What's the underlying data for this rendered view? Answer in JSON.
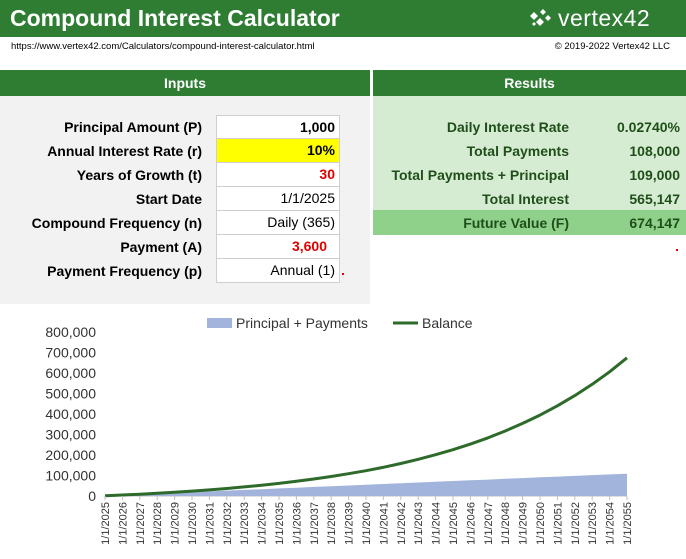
{
  "header": {
    "title": "Compound Interest Calculator",
    "brand": "vertex42",
    "url": "https://www.vertex42.com/Calculators/compound-interest-calculator.html",
    "copyright": "© 2019-2022 Vertex42 LLC"
  },
  "inputs": {
    "heading": "Inputs",
    "rows": [
      {
        "label": "Principal Amount (P)",
        "value": "1,000"
      },
      {
        "label": "Annual Interest Rate (r)",
        "value": "10%"
      },
      {
        "label": "Years of Growth (t)",
        "value": "30"
      },
      {
        "label": "Start Date",
        "value": "1/1/2025"
      },
      {
        "label": "Compound Frequency (n)",
        "value": "Daily (365)"
      },
      {
        "label": "Payment (A)",
        "value": "3,600"
      },
      {
        "label": "Payment Frequency (p)",
        "value": "Annual (1)"
      }
    ]
  },
  "results": {
    "heading": "Results",
    "rows": [
      {
        "label": "Daily Interest Rate",
        "value": "0.02740%"
      },
      {
        "label": "Total Payments",
        "value": "108,000"
      },
      {
        "label": "Total Payments + Principal",
        "value": "109,000"
      },
      {
        "label": "Total Interest",
        "value": "565,147"
      },
      {
        "label": "Future Value (F)",
        "value": "674,147"
      }
    ]
  },
  "colors": {
    "header_green": "#2e7d32",
    "results_bg": "#d6ecd2",
    "future_value_bg": "#8fd18b",
    "highlight_yellow": "#ffff00",
    "input_red": "#e00000",
    "area_fill": "#a3b4dc",
    "balance_line": "#2e6b2a"
  },
  "chart_data": {
    "type": "line",
    "legend_position": "top",
    "ylim": [
      0,
      800000
    ],
    "y_ticks": [
      "0",
      "100,000",
      "200,000",
      "300,000",
      "400,000",
      "500,000",
      "600,000",
      "700,000",
      "800,000"
    ],
    "x": [
      "1/1/2025",
      "1/1/2026",
      "1/1/2027",
      "1/1/2028",
      "1/1/2029",
      "1/1/2030",
      "1/1/2031",
      "1/1/2032",
      "1/1/2033",
      "1/1/2034",
      "1/1/2035",
      "1/1/2036",
      "1/1/2037",
      "1/1/2038",
      "1/1/2039",
      "1/1/2040",
      "1/1/2041",
      "1/1/2042",
      "1/1/2043",
      "1/1/2044",
      "1/1/2045",
      "1/1/2046",
      "1/1/2047",
      "1/1/2048",
      "1/1/2049",
      "1/1/2050",
      "1/1/2051",
      "1/1/2052",
      "1/1/2053",
      "1/1/2054",
      "1/1/2055"
    ],
    "series": [
      {
        "name": "Principal + Payments",
        "type": "area",
        "values": [
          1000,
          4600,
          8200,
          11800,
          15400,
          19000,
          22600,
          26200,
          29800,
          33400,
          37000,
          40600,
          44200,
          47800,
          51400,
          55000,
          58600,
          62200,
          65800,
          69400,
          73000,
          76600,
          80200,
          83800,
          87400,
          91000,
          94600,
          98200,
          101800,
          105400,
          109000
        ]
      },
      {
        "name": "Balance",
        "type": "line",
        "values": [
          1000,
          4705,
          8800,
          13325,
          18326,
          23853,
          29961,
          36711,
          44170,
          52414,
          61525,
          71594,
          82722,
          95020,
          108612,
          123633,
          140234,
          158580,
          178855,
          201263,
          226027,
          253395,
          283640,
          317067,
          354008,
          394833,
          439951,
          489814,
          544919,
          605819,
          674147
        ]
      }
    ]
  }
}
